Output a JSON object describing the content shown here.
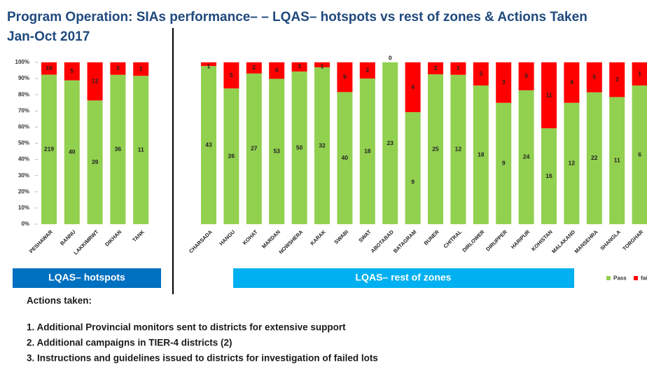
{
  "chart_data": {
    "type": "bar",
    "stacked": "percent",
    "title": "Program Operation: SIAs performance– – LQAS– hotspots vs rest of zones & Actions Taken",
    "subtitle": "Jan-Oct 2017",
    "categories": [
      "PESHAWAR",
      "BANNU",
      "LAKKIMRWT",
      "DIKHAN",
      "TANK",
      "CHARSADA",
      "HANGU",
      "KOHAT",
      "MARDAN",
      "NOWSHERA",
      "KARAK",
      "SWABI",
      "SWAT",
      "ABOTABAD",
      "BATAGRAM",
      "BUNER",
      "CHITRAL",
      "DIRLOWER",
      "DIRUPPER",
      "HARIPUR",
      "KOHISTAN",
      "MALAKAND",
      "MANSEHRA",
      "SHANGLA",
      "TORGHAR"
    ],
    "series": [
      {
        "name": "Pass",
        "color": "#92d050",
        "values": [
          219,
          40,
          39,
          36,
          11,
          43,
          26,
          27,
          53,
          50,
          32,
          40,
          18,
          23,
          9,
          25,
          12,
          18,
          9,
          24,
          16,
          12,
          22,
          11,
          6
        ]
      },
      {
        "name": "fail",
        "color": "#ff0000",
        "values": [
          18,
          5,
          12,
          3,
          1,
          1,
          5,
          2,
          6,
          3,
          1,
          9,
          2,
          0,
          4,
          2,
          1,
          3,
          3,
          5,
          11,
          4,
          5,
          3,
          1
        ]
      }
    ],
    "ylim": [
      0,
      100
    ],
    "yticks": [
      {
        "value": 0,
        "label": "0%"
      },
      {
        "value": 10,
        "label": "10%"
      },
      {
        "value": 20,
        "label": "20%"
      },
      {
        "value": 30,
        "label": "30%"
      },
      {
        "value": 40,
        "label": "40%"
      },
      {
        "value": 50,
        "label": "50%"
      },
      {
        "value": 60,
        "label": "60%"
      },
      {
        "value": 70,
        "label": "70%"
      },
      {
        "value": 80,
        "label": "80%"
      },
      {
        "value": 90,
        "label": "90%"
      },
      {
        "value": 100,
        "label": "100%"
      }
    ],
    "grid": false,
    "legend": "bottom-right",
    "groups": [
      "LQAS– hotspots",
      "LQAS– rest of zones"
    ]
  },
  "actions": {
    "heading": "Actions taken:",
    "items": [
      "1. Additional  Provincial monitors sent to districts for extensive support",
      "2. Additional  campaigns in TIER-4 districts (2)",
      "3. Instructions and guidelines issued to districts for investigation of failed lots"
    ]
  }
}
